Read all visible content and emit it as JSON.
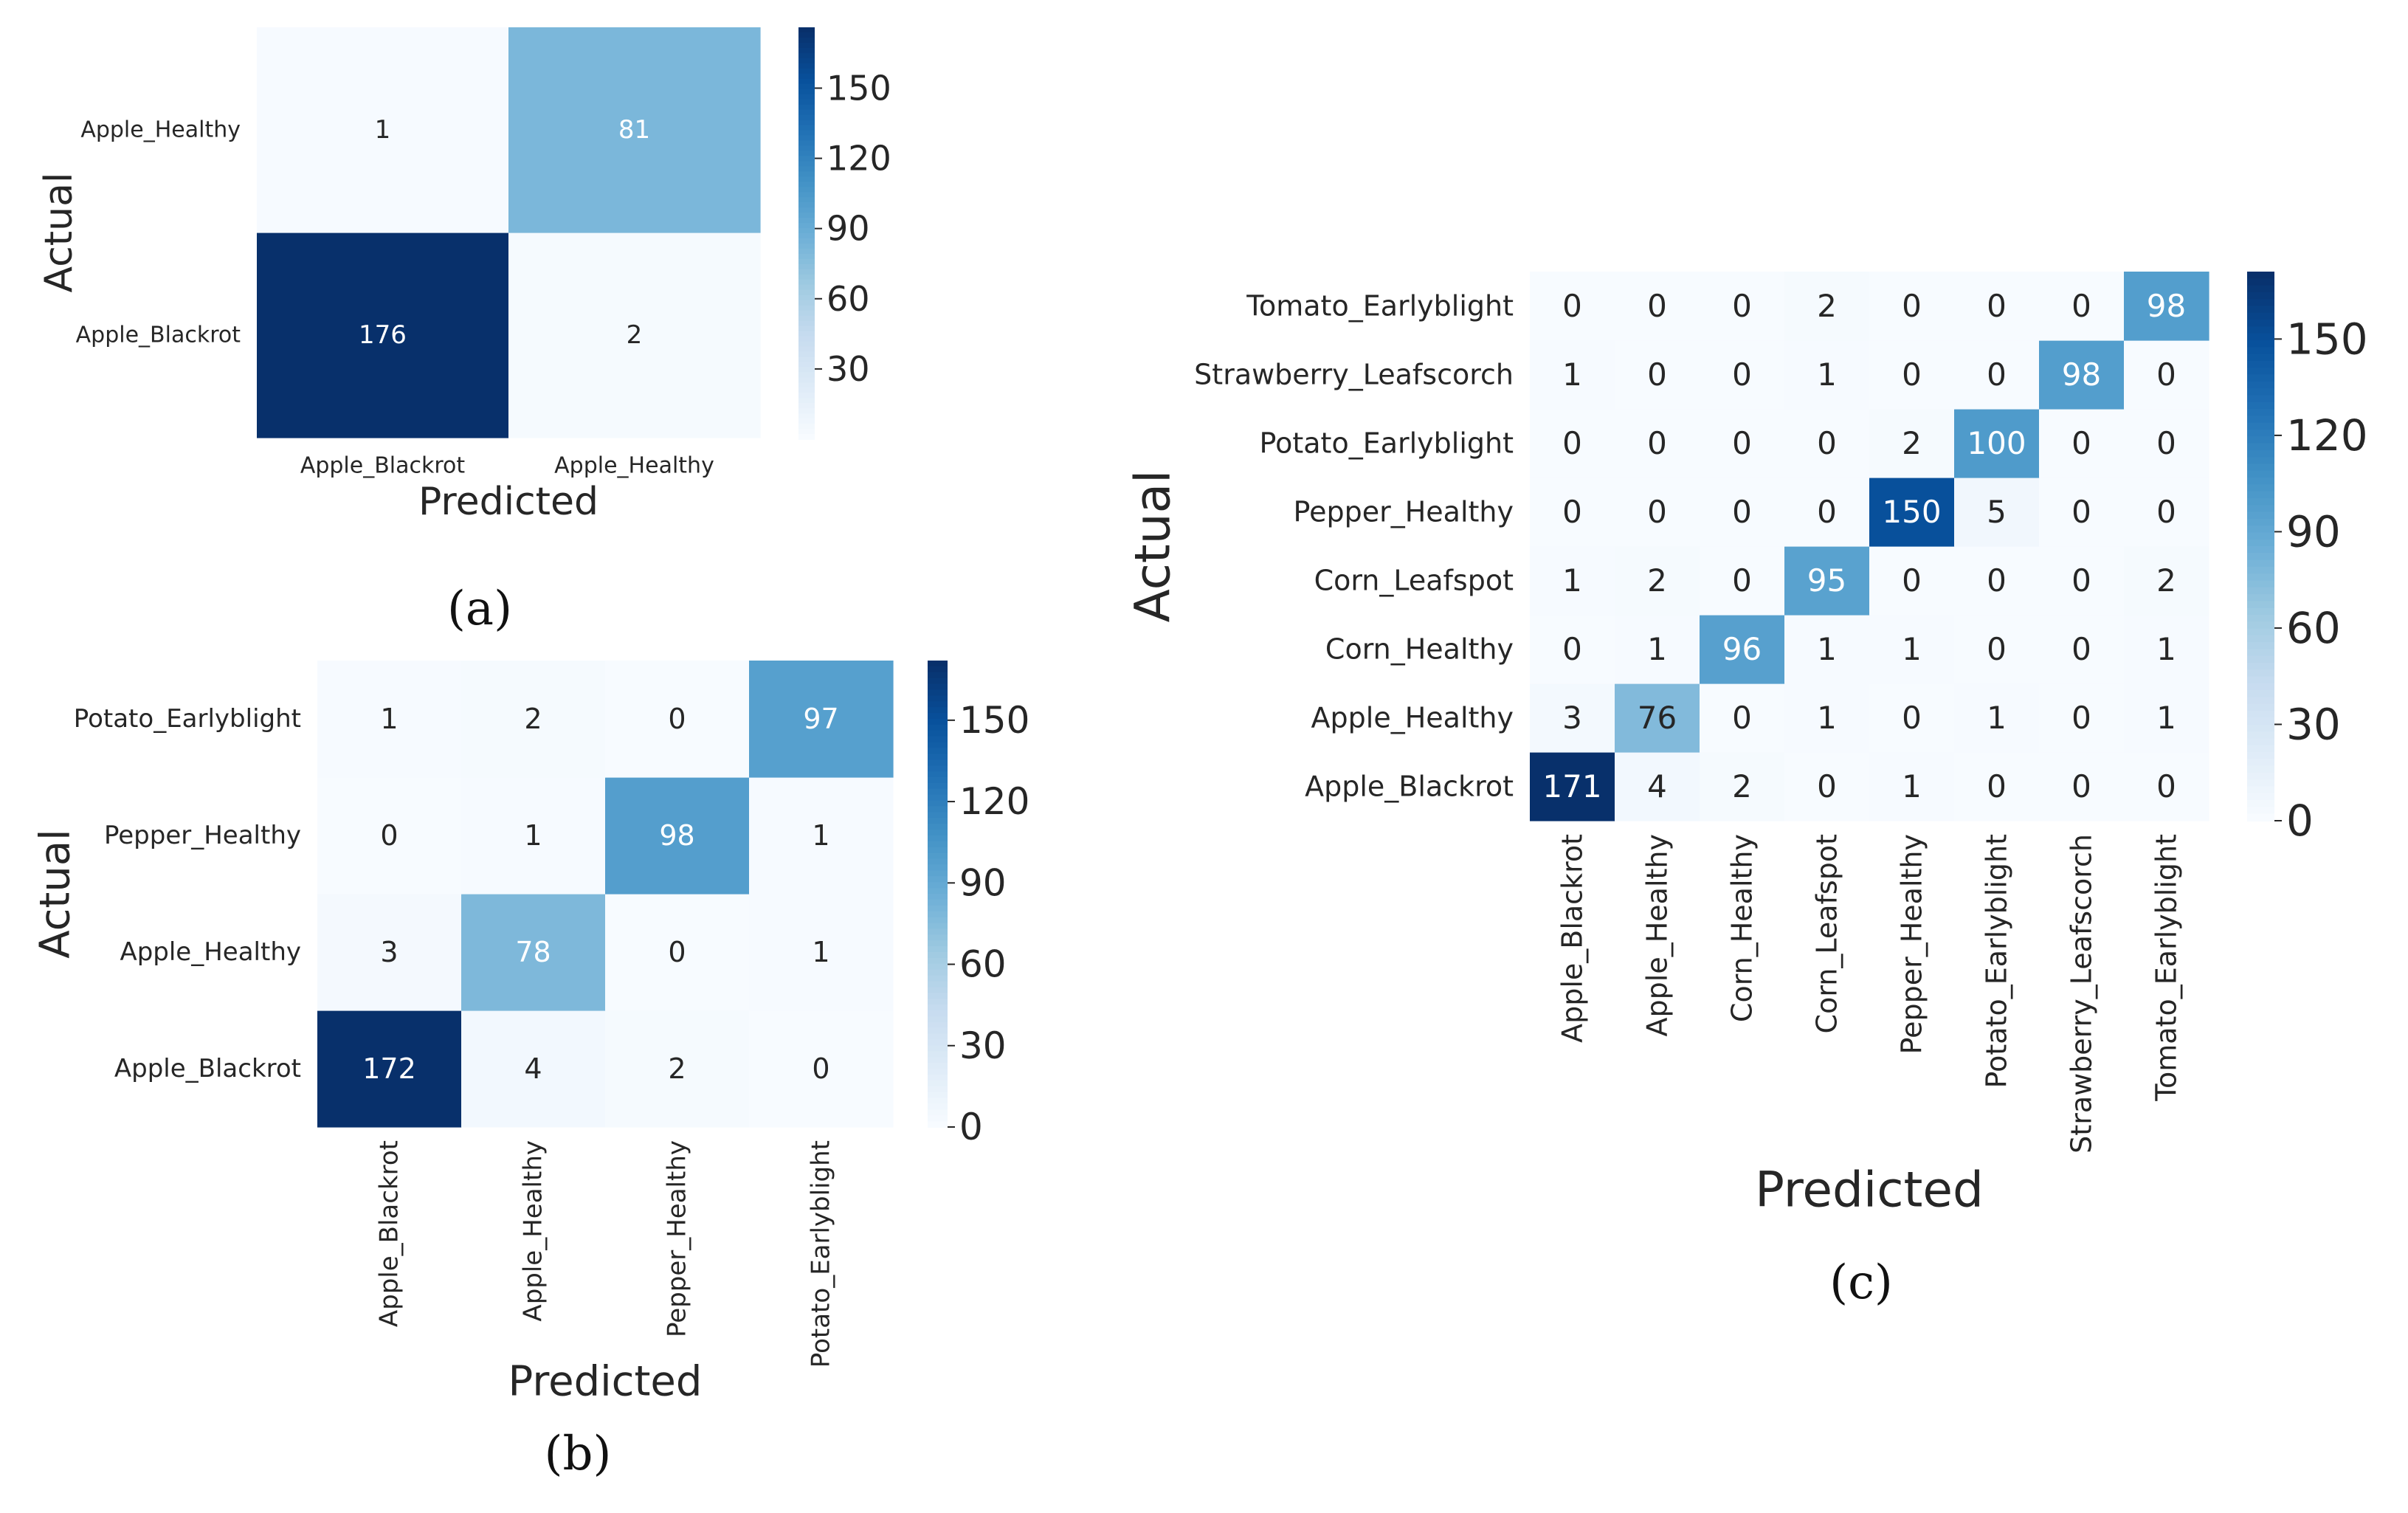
{
  "chart_data": [
    {
      "type": "heatmap",
      "panel_label": "(a)",
      "xlabel": "Predicted",
      "ylabel": "Actual",
      "x_categories": [
        "Apple_Blackrot",
        "Apple_Healthy"
      ],
      "y_categories_bottom_to_top": [
        "Apple_Blackrot",
        "Apple_Healthy"
      ],
      "matrix_bottom_to_top": [
        [
          176,
          2
        ],
        [
          1,
          81
        ]
      ],
      "colorbar": {
        "ticks": [
          30,
          60,
          90,
          120,
          150
        ],
        "range": [
          0,
          176
        ],
        "colormap": "Blues"
      }
    },
    {
      "type": "heatmap",
      "panel_label": "(b)",
      "xlabel": "Predicted",
      "ylabel": "Actual",
      "x_categories": [
        "Apple_Blackrot",
        "Apple_Healthy",
        "Pepper_Healthy",
        "Potato_Earlyblight"
      ],
      "y_categories_bottom_to_top": [
        "Apple_Blackrot",
        "Apple_Healthy",
        "Pepper_Healthy",
        "Potato_Earlyblight"
      ],
      "matrix_bottom_to_top": [
        [
          172,
          4,
          2,
          0
        ],
        [
          3,
          78,
          0,
          1
        ],
        [
          0,
          1,
          98,
          1
        ],
        [
          1,
          2,
          0,
          97
        ]
      ],
      "colorbar": {
        "ticks": [
          0,
          30,
          60,
          90,
          120,
          150
        ],
        "range": [
          0,
          172
        ],
        "colormap": "Blues"
      }
    },
    {
      "type": "heatmap",
      "panel_label": "(c)",
      "xlabel": "Predicted",
      "ylabel": "Actual",
      "x_categories": [
        "Apple_Blackrot",
        "Apple_Healthy",
        "Corn_Healthy",
        "Corn_Leafspot",
        "Pepper_Healthy",
        "Potato_Earlyblight",
        "Strawberry_Leafscorch",
        "Tomato_Earlyblight"
      ],
      "y_categories_bottom_to_top": [
        "Apple_Blackrot",
        "Apple_Healthy",
        "Corn_Healthy",
        "Corn_Leafspot",
        "Pepper_Healthy",
        "Potato_Earlyblight",
        "Strawberry_Leafscorch",
        "Tomato_Earlyblight"
      ],
      "matrix_bottom_to_top": [
        [
          171,
          4,
          2,
          0,
          1,
          0,
          0,
          0
        ],
        [
          3,
          76,
          0,
          1,
          0,
          1,
          0,
          1
        ],
        [
          0,
          1,
          96,
          1,
          1,
          0,
          0,
          1
        ],
        [
          1,
          2,
          0,
          95,
          0,
          0,
          0,
          2
        ],
        [
          0,
          0,
          0,
          0,
          150,
          5,
          0,
          0
        ],
        [
          0,
          0,
          0,
          0,
          2,
          100,
          0,
          0
        ],
        [
          1,
          0,
          0,
          1,
          0,
          0,
          98,
          0
        ],
        [
          0,
          0,
          0,
          2,
          0,
          0,
          0,
          98
        ]
      ],
      "colorbar": {
        "ticks": [
          0,
          30,
          60,
          90,
          120,
          150
        ],
        "range": [
          0,
          171
        ],
        "colormap": "Blues"
      }
    }
  ]
}
